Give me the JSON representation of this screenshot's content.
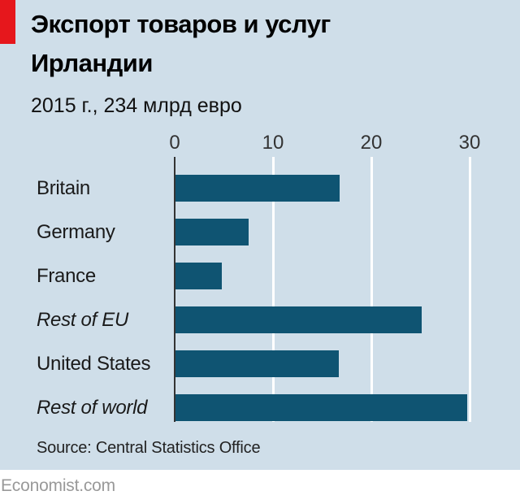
{
  "header": {
    "title_line1": "Экспорт товаров и услуг",
    "title_line2": "Ирландии",
    "subtitle": "2015 г., 234 млрд евро"
  },
  "chart_data": {
    "type": "bar",
    "orientation": "horizontal",
    "title": "Экспорт товаров и услуг Ирландии",
    "subtitle": "2015 г., 234 млрд евро",
    "categories": [
      "Britain",
      "Germany",
      "France",
      "Rest of EU",
      "United States",
      "Rest of world"
    ],
    "values": [
      16.7,
      7.4,
      4.7,
      25.0,
      16.6,
      29.7
    ],
    "italic_categories": [
      "Rest of EU",
      "Rest of world"
    ],
    "x_ticks": [
      0,
      10,
      20,
      30
    ],
    "xlim": [
      0,
      30
    ],
    "grid": "vertical white gridlines at 10, 20, 30",
    "legend": "none"
  },
  "source": "Source: Central Statistics Office",
  "footer": "Economist.com",
  "colors": {
    "background": "#cfdee9",
    "bar": "#0f5472",
    "accent_red": "#e6171c",
    "axis": "#333333",
    "gridline": "#ffffff",
    "text": "#1a1a1a",
    "footer_text": "#999999"
  }
}
